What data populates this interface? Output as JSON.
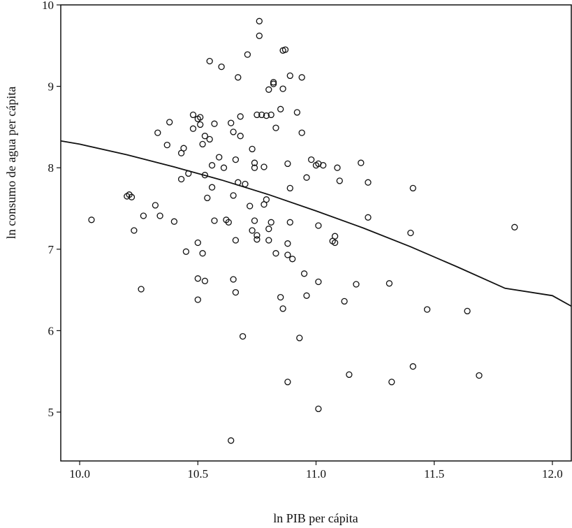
{
  "chart_data": {
    "type": "scatter",
    "title": "",
    "xlabel": "ln PIB per cápita",
    "ylabel": "ln consumo de agua per cápita",
    "xlim": [
      9.92,
      12.08
    ],
    "ylim": [
      4.4,
      10.0
    ],
    "xticks": [
      10.0,
      10.5,
      11.0,
      11.5,
      12.0
    ],
    "xtick_labels": [
      "10.0",
      "10.5",
      "11.0",
      "11.5",
      "12.0"
    ],
    "yticks": [
      5,
      6,
      7,
      8,
      9,
      10
    ],
    "ytick_labels": [
      "5",
      "6",
      "7",
      "8",
      "9",
      "10"
    ],
    "grid": false,
    "points": [
      [
        10.05,
        7.36
      ],
      [
        10.2,
        7.65
      ],
      [
        10.21,
        7.67
      ],
      [
        10.22,
        7.64
      ],
      [
        10.23,
        7.23
      ],
      [
        10.26,
        6.51
      ],
      [
        10.27,
        7.41
      ],
      [
        10.32,
        7.54
      ],
      [
        10.33,
        8.43
      ],
      [
        10.34,
        7.41
      ],
      [
        10.37,
        8.28
      ],
      [
        10.38,
        8.56
      ],
      [
        10.4,
        7.34
      ],
      [
        10.43,
        8.18
      ],
      [
        10.43,
        7.86
      ],
      [
        10.44,
        8.24
      ],
      [
        10.45,
        6.97
      ],
      [
        10.46,
        7.93
      ],
      [
        10.48,
        8.48
      ],
      [
        10.48,
        8.65
      ],
      [
        10.5,
        8.6
      ],
      [
        10.5,
        7.08
      ],
      [
        10.5,
        6.64
      ],
      [
        10.5,
        6.38
      ],
      [
        10.51,
        8.53
      ],
      [
        10.51,
        8.62
      ],
      [
        10.52,
        8.29
      ],
      [
        10.52,
        6.95
      ],
      [
        10.53,
        6.61
      ],
      [
        10.53,
        8.39
      ],
      [
        10.53,
        7.91
      ],
      [
        10.54,
        7.63
      ],
      [
        10.55,
        8.35
      ],
      [
        10.55,
        9.31
      ],
      [
        10.56,
        7.76
      ],
      [
        10.56,
        8.03
      ],
      [
        10.57,
        8.54
      ],
      [
        10.57,
        7.35
      ],
      [
        10.59,
        8.13
      ],
      [
        10.6,
        9.24
      ],
      [
        10.61,
        8.0
      ],
      [
        10.62,
        7.36
      ],
      [
        10.63,
        7.33
      ],
      [
        10.64,
        8.55
      ],
      [
        10.65,
        8.44
      ],
      [
        10.65,
        7.66
      ],
      [
        10.65,
        6.63
      ],
      [
        10.66,
        7.11
      ],
      [
        10.66,
        8.1
      ],
      [
        10.66,
        6.47
      ],
      [
        10.67,
        9.11
      ],
      [
        10.67,
        7.82
      ],
      [
        10.68,
        8.39
      ],
      [
        10.68,
        8.63
      ],
      [
        10.69,
        5.93
      ],
      [
        10.7,
        7.8
      ],
      [
        10.71,
        9.39
      ],
      [
        10.72,
        7.53
      ],
      [
        10.73,
        8.23
      ],
      [
        10.73,
        7.23
      ],
      [
        10.74,
        8.06
      ],
      [
        10.74,
        7.35
      ],
      [
        10.74,
        8.0
      ],
      [
        10.75,
        7.17
      ],
      [
        10.75,
        7.12
      ],
      [
        10.75,
        8.65
      ],
      [
        10.76,
        9.62
      ],
      [
        10.76,
        9.8
      ],
      [
        10.77,
        8.65
      ],
      [
        10.78,
        8.01
      ],
      [
        10.78,
        7.55
      ],
      [
        10.79,
        8.64
      ],
      [
        10.79,
        7.61
      ],
      [
        10.8,
        8.96
      ],
      [
        10.8,
        7.25
      ],
      [
        10.8,
        7.11
      ],
      [
        10.81,
        7.33
      ],
      [
        10.81,
        8.65
      ],
      [
        10.82,
        9.03
      ],
      [
        10.82,
        9.05
      ],
      [
        10.83,
        8.49
      ],
      [
        10.83,
        6.95
      ],
      [
        10.85,
        8.72
      ],
      [
        10.85,
        6.41
      ],
      [
        10.86,
        8.97
      ],
      [
        10.86,
        6.27
      ],
      [
        10.86,
        9.44
      ],
      [
        10.87,
        9.45
      ],
      [
        10.88,
        8.05
      ],
      [
        10.88,
        7.07
      ],
      [
        10.88,
        6.93
      ],
      [
        10.88,
        5.37
      ],
      [
        10.89,
        7.75
      ],
      [
        10.89,
        7.33
      ],
      [
        10.89,
        9.13
      ],
      [
        10.9,
        6.88
      ],
      [
        10.92,
        8.68
      ],
      [
        10.93,
        5.91
      ],
      [
        10.94,
        8.43
      ],
      [
        10.94,
        9.11
      ],
      [
        10.95,
        6.7
      ],
      [
        10.96,
        7.88
      ],
      [
        10.96,
        6.43
      ],
      [
        10.98,
        8.1
      ],
      [
        11.0,
        8.03
      ],
      [
        11.01,
        8.05
      ],
      [
        11.01,
        7.29
      ],
      [
        11.01,
        6.6
      ],
      [
        11.01,
        5.04
      ],
      [
        11.03,
        8.03
      ],
      [
        11.07,
        7.1
      ],
      [
        11.08,
        7.16
      ],
      [
        11.08,
        7.08
      ],
      [
        11.09,
        8.0
      ],
      [
        11.1,
        7.84
      ],
      [
        11.12,
        6.36
      ],
      [
        11.14,
        5.46
      ],
      [
        11.17,
        6.57
      ],
      [
        11.19,
        8.06
      ],
      [
        11.22,
        7.39
      ],
      [
        11.22,
        7.82
      ],
      [
        11.31,
        6.58
      ],
      [
        11.32,
        5.37
      ],
      [
        11.4,
        7.2
      ],
      [
        11.41,
        5.56
      ],
      [
        11.41,
        7.75
      ],
      [
        11.47,
        6.26
      ],
      [
        11.64,
        6.24
      ],
      [
        11.69,
        5.45
      ],
      [
        11.84,
        7.27
      ],
      [
        10.64,
        4.65
      ]
    ],
    "fit_line": {
      "type": "quadratic",
      "x": [
        9.92,
        10.0,
        10.2,
        10.4,
        10.6,
        10.8,
        11.0,
        11.2,
        11.4,
        11.6,
        11.8,
        12.0,
        12.08
      ],
      "y": [
        8.33,
        8.29,
        8.16,
        8.01,
        7.85,
        7.67,
        7.47,
        7.26,
        7.03,
        6.78,
        6.52,
        6.43,
        6.3
      ]
    }
  }
}
